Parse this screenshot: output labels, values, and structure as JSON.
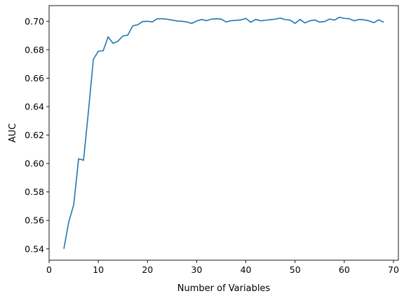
{
  "chart_data": {
    "type": "line",
    "xlabel": "Number of Variables",
    "ylabel": "AUC",
    "xlim": [
      0,
      71
    ],
    "ylim": [
      0.532,
      0.711
    ],
    "xticks": [
      0,
      10,
      20,
      30,
      40,
      50,
      60,
      70
    ],
    "yticks": [
      0.54,
      0.56,
      0.58,
      0.6,
      0.62,
      0.64,
      0.66,
      0.68,
      0.7
    ],
    "ytick_labels": [
      "0.54",
      "0.56",
      "0.58",
      "0.60",
      "0.62",
      "0.64",
      "0.66",
      "0.68",
      "0.70"
    ],
    "grid": false,
    "line_color": "#1f77b4",
    "series": [
      {
        "x": [
          3,
          4,
          5,
          6,
          7,
          8,
          9,
          10,
          11,
          12,
          13,
          14,
          15,
          16,
          17,
          18,
          19,
          20,
          21,
          22,
          23,
          24,
          25,
          26,
          27,
          28,
          29,
          30,
          31,
          32,
          33,
          34,
          35,
          36,
          37,
          38,
          39,
          40,
          41,
          42,
          43,
          44,
          45,
          46,
          47,
          48,
          49,
          50,
          51,
          52,
          53,
          54,
          55,
          56,
          57,
          58,
          59,
          60,
          61,
          62,
          63,
          64,
          65,
          66,
          67,
          68
        ],
        "values": [
          0.54,
          0.559,
          0.571,
          0.6033,
          0.6023,
          0.6368,
          0.6733,
          0.6789,
          0.6793,
          0.689,
          0.6845,
          0.686,
          0.6897,
          0.6903,
          0.6968,
          0.6975,
          0.6998,
          0.7,
          0.6996,
          0.7018,
          0.7018,
          0.7014,
          0.7008,
          0.7002,
          0.7,
          0.6995,
          0.6985,
          0.7002,
          0.7012,
          0.7004,
          0.7015,
          0.7018,
          0.7015,
          0.6995,
          0.7004,
          0.7006,
          0.701,
          0.702,
          0.6993,
          0.7013,
          0.7003,
          0.7007,
          0.7011,
          0.7015,
          0.7022,
          0.7012,
          0.7008,
          0.6985,
          0.7013,
          0.6988,
          0.7003,
          0.7009,
          0.6994,
          0.6998,
          0.7015,
          0.7008,
          0.7028,
          0.702,
          0.7018,
          0.7003,
          0.7013,
          0.701,
          0.7003,
          0.699,
          0.701,
          0.6993
        ]
      }
    ]
  }
}
